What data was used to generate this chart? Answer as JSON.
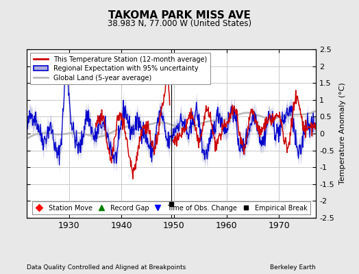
{
  "title": "TAKOMA PARK MISS AVE",
  "subtitle": "38.983 N, 77.000 W (United States)",
  "ylabel": "Temperature Anomaly (°C)",
  "footnote_left": "Data Quality Controlled and Aligned at Breakpoints",
  "footnote_right": "Berkeley Earth",
  "xlim": [
    1922,
    1977
  ],
  "ylim": [
    -2.5,
    2.5
  ],
  "yticks": [
    -2.5,
    -2,
    -1.5,
    -1,
    -0.5,
    0,
    0.5,
    1,
    1.5,
    2,
    2.5
  ],
  "xticks": [
    1930,
    1940,
    1950,
    1960,
    1970
  ],
  "background_color": "#e8e8e8",
  "plot_bg_color": "#ffffff",
  "grid_color": "#c8c8c8",
  "red_line_color": "#cc0000",
  "blue_line_color": "#0000cc",
  "blue_fill_color": "#aaaadd",
  "gray_line_color": "#bbbbbb",
  "empirical_break_year": 1949.5,
  "empirical_break_value": -2.1
}
